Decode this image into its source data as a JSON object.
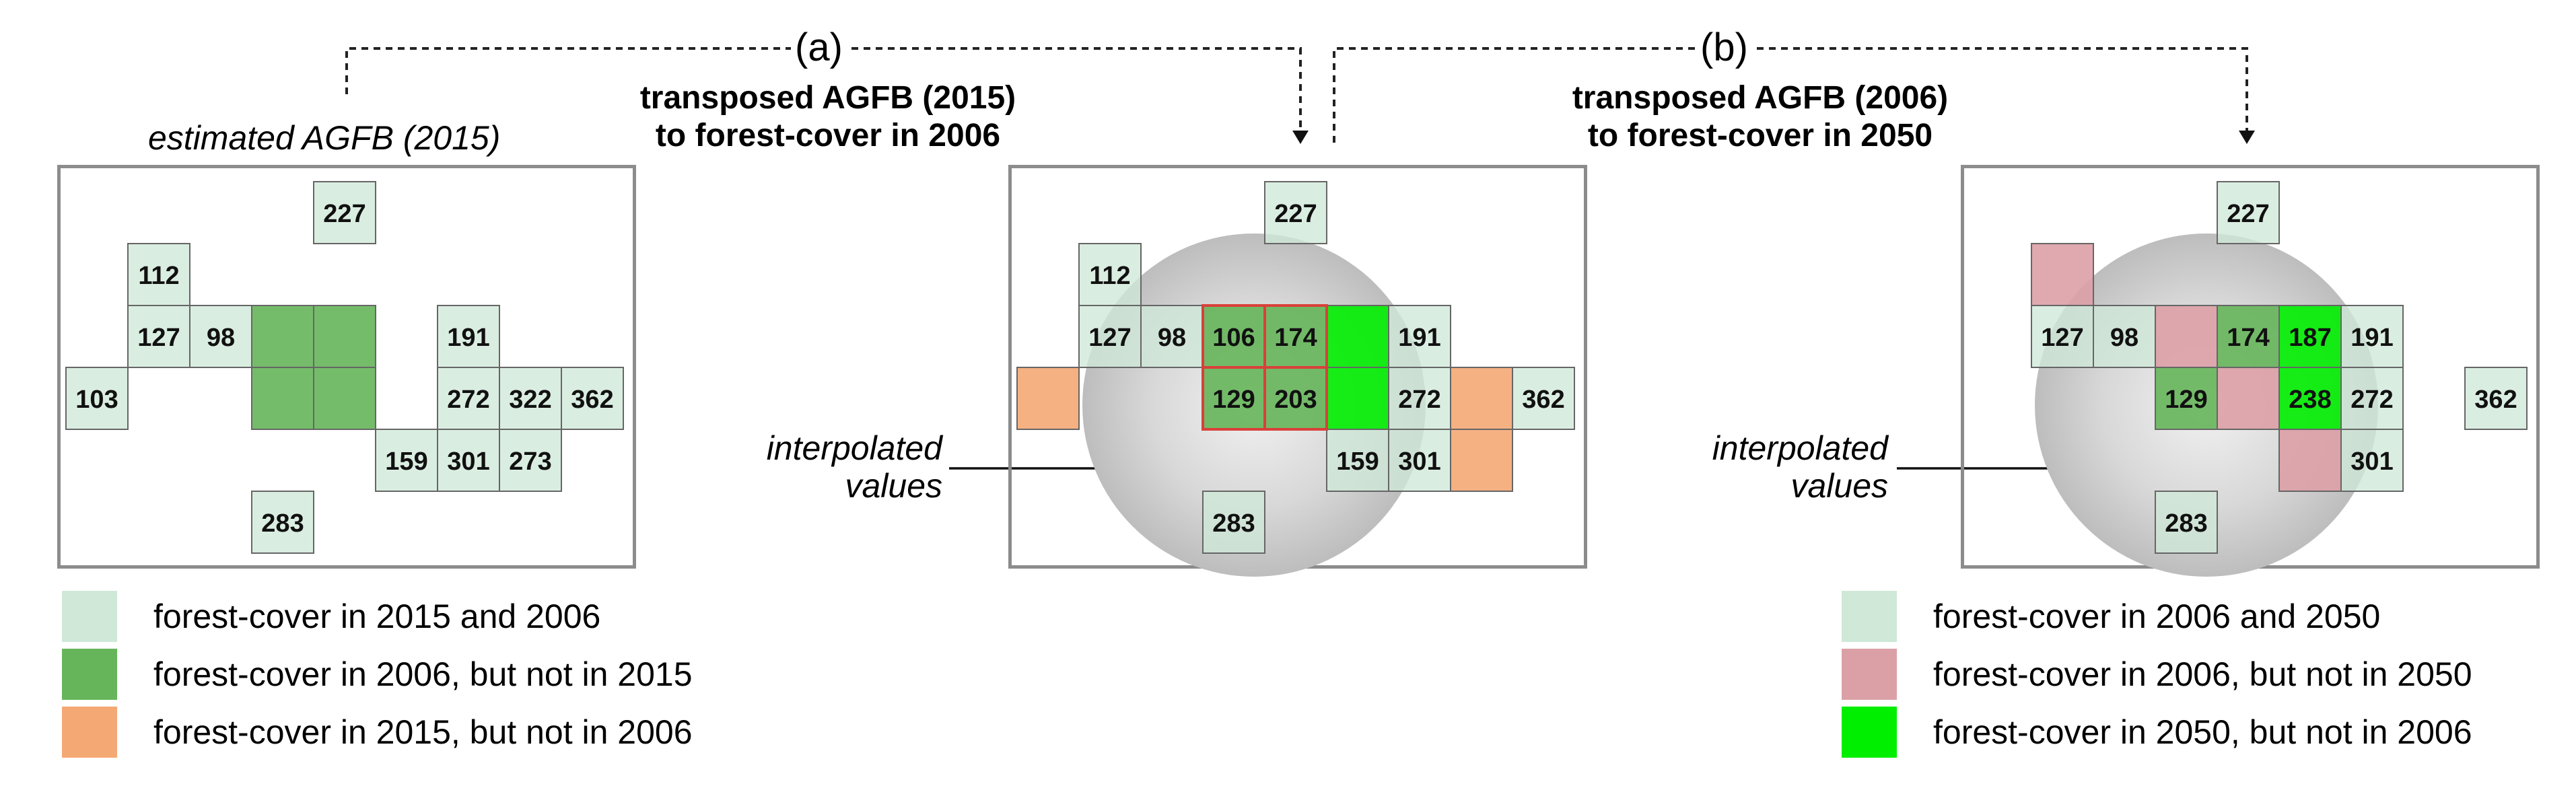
{
  "colors": {
    "light_green": "#cfe8d8",
    "mid_green": "#66b55a",
    "bright_green": "#00ee00",
    "orange": "#f4a874",
    "pink": "#dba0a6",
    "interp_border": "#d9403a",
    "panel_border": "#8c8c8c"
  },
  "labels": {
    "a": "(a)",
    "b": "(b)",
    "title_mid_line1": "transposed AGFB (2015)",
    "title_mid_line2": "to forest-cover in 2006",
    "title_right_line1": "transposed AGFB (2006)",
    "title_right_line2": "to forest-cover in 2050",
    "estimated": "estimated AGFB (2015)",
    "interp_line1": "interpolated",
    "interp_line2": "values"
  },
  "panels": [
    {
      "cells": [
        {
          "col": 4,
          "row": 0,
          "fill": "light_green",
          "value": "227"
        },
        {
          "col": 1,
          "row": 1,
          "fill": "light_green",
          "value": "112"
        },
        {
          "col": 1,
          "row": 2,
          "fill": "light_green",
          "value": "127"
        },
        {
          "col": 2,
          "row": 2,
          "fill": "light_green",
          "value": "98"
        },
        {
          "col": 3,
          "row": 2,
          "fill": "mid_green",
          "value": ""
        },
        {
          "col": 4,
          "row": 2,
          "fill": "mid_green",
          "value": ""
        },
        {
          "col": 6,
          "row": 2,
          "fill": "light_green",
          "value": "191"
        },
        {
          "col": 0,
          "row": 3,
          "fill": "light_green",
          "value": "103"
        },
        {
          "col": 3,
          "row": 3,
          "fill": "mid_green",
          "value": ""
        },
        {
          "col": 4,
          "row": 3,
          "fill": "mid_green",
          "value": ""
        },
        {
          "col": 6,
          "row": 3,
          "fill": "light_green",
          "value": "272"
        },
        {
          "col": 7,
          "row": 3,
          "fill": "light_green",
          "value": "322"
        },
        {
          "col": 8,
          "row": 3,
          "fill": "light_green",
          "value": "362"
        },
        {
          "col": 5,
          "row": 4,
          "fill": "light_green",
          "value": "159"
        },
        {
          "col": 6,
          "row": 4,
          "fill": "light_green",
          "value": "301"
        },
        {
          "col": 7,
          "row": 4,
          "fill": "light_green",
          "value": "273"
        },
        {
          "col": 3,
          "row": 5,
          "fill": "light_green",
          "value": "283"
        }
      ]
    },
    {
      "cells": [
        {
          "col": 4,
          "row": 0,
          "fill": "light_green",
          "value": "227"
        },
        {
          "col": 1,
          "row": 1,
          "fill": "light_green",
          "value": "112"
        },
        {
          "col": 1,
          "row": 2,
          "fill": "light_green",
          "value": "127"
        },
        {
          "col": 2,
          "row": 2,
          "fill": "light_green",
          "value": "98"
        },
        {
          "col": 3,
          "row": 2,
          "fill": "mid_green",
          "value": "106",
          "interp": true
        },
        {
          "col": 4,
          "row": 2,
          "fill": "mid_green",
          "value": "174",
          "interp": true
        },
        {
          "col": 5,
          "row": 2,
          "fill": "bright_green",
          "value": ""
        },
        {
          "col": 6,
          "row": 2,
          "fill": "light_green",
          "value": "191"
        },
        {
          "col": 0,
          "row": 3,
          "fill": "orange",
          "value": ""
        },
        {
          "col": 3,
          "row": 3,
          "fill": "mid_green",
          "value": "129",
          "interp": true
        },
        {
          "col": 4,
          "row": 3,
          "fill": "mid_green",
          "value": "203",
          "interp": true
        },
        {
          "col": 5,
          "row": 3,
          "fill": "bright_green",
          "value": ""
        },
        {
          "col": 6,
          "row": 3,
          "fill": "light_green",
          "value": "272"
        },
        {
          "col": 7,
          "row": 3,
          "fill": "orange",
          "value": ""
        },
        {
          "col": 8,
          "row": 3,
          "fill": "light_green",
          "value": "362"
        },
        {
          "col": 5,
          "row": 4,
          "fill": "light_green",
          "value": "159"
        },
        {
          "col": 6,
          "row": 4,
          "fill": "light_green",
          "value": "301"
        },
        {
          "col": 7,
          "row": 4,
          "fill": "orange",
          "value": ""
        },
        {
          "col": 3,
          "row": 5,
          "fill": "light_green",
          "value": "283"
        }
      ]
    },
    {
      "cells": [
        {
          "col": 4,
          "row": 0,
          "fill": "light_green",
          "value": "227"
        },
        {
          "col": 1,
          "row": 1,
          "fill": "pink",
          "value": ""
        },
        {
          "col": 1,
          "row": 2,
          "fill": "light_green",
          "value": "127"
        },
        {
          "col": 2,
          "row": 2,
          "fill": "light_green",
          "value": "98"
        },
        {
          "col": 3,
          "row": 2,
          "fill": "pink",
          "value": ""
        },
        {
          "col": 4,
          "row": 2,
          "fill": "mid_green",
          "value": "174"
        },
        {
          "col": 5,
          "row": 2,
          "fill": "bright_green",
          "value": "187"
        },
        {
          "col": 6,
          "row": 2,
          "fill": "light_green",
          "value": "191"
        },
        {
          "col": 3,
          "row": 3,
          "fill": "mid_green",
          "value": "129"
        },
        {
          "col": 4,
          "row": 3,
          "fill": "pink",
          "value": ""
        },
        {
          "col": 5,
          "row": 3,
          "fill": "bright_green",
          "value": "238"
        },
        {
          "col": 6,
          "row": 3,
          "fill": "light_green",
          "value": "272"
        },
        {
          "col": 8,
          "row": 3,
          "fill": "light_green",
          "value": "362"
        },
        {
          "col": 5,
          "row": 4,
          "fill": "pink",
          "value": ""
        },
        {
          "col": 6,
          "row": 4,
          "fill": "light_green",
          "value": "301"
        },
        {
          "col": 3,
          "row": 5,
          "fill": "light_green",
          "value": "283"
        }
      ]
    }
  ],
  "legend_left": [
    {
      "fill": "light_green",
      "label": "forest-cover in 2015 and 2006"
    },
    {
      "fill": "mid_green",
      "label": "forest-cover in 2006, but not in 2015"
    },
    {
      "fill": "orange",
      "label": "forest-cover in 2015, but not in 2006"
    }
  ],
  "legend_right": [
    {
      "fill": "light_green",
      "label": "forest-cover in 2006 and 2050"
    },
    {
      "fill": "pink",
      "label": "forest-cover in 2006, but not in 2050"
    },
    {
      "fill": "bright_green",
      "label": "forest-cover in 2050, but not in 2006"
    }
  ]
}
